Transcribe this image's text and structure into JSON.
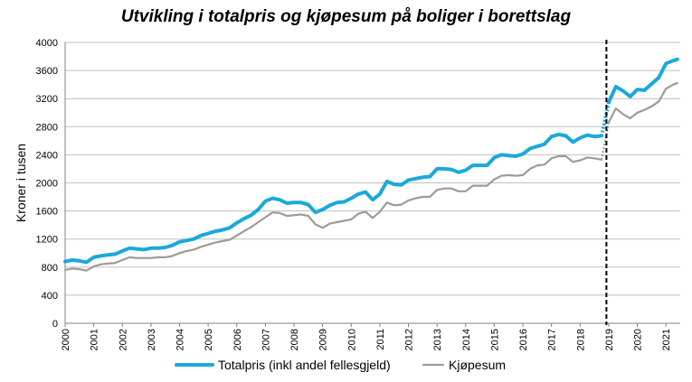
{
  "chart_data": {
    "type": "line",
    "title": "Utvikling i totalpris og kjøpesum på boliger i borettslag",
    "xlabel": "",
    "ylabel": "Kroner i tusen",
    "ylim": [
      0,
      4000
    ],
    "yticks": [
      0,
      400,
      800,
      1200,
      1600,
      2000,
      2400,
      2800,
      3200,
      3600,
      4000
    ],
    "xlim": [
      2000,
      2021.5
    ],
    "xticks": [
      "2000",
      "2001",
      "2002",
      "2003",
      "2004",
      "2005",
      "2006",
      "2007",
      "2008",
      "2009",
      "2010",
      "2011",
      "2012",
      "2013",
      "2014",
      "2015",
      "2016",
      "2017",
      "2018",
      "2019",
      "2020",
      "2021"
    ],
    "grid": "horizontal",
    "legend": "bottom",
    "annotation": "dashed vertical line at start of 2019",
    "divider_x": 2018.92,
    "series": [
      {
        "name": "Totalpris (inkl andel fellesgjeld)",
        "color": "#1BA8DB",
        "segments": [
          {
            "x": [
              2000.0,
              2000.25,
              2000.5,
              2000.75,
              2001.0,
              2001.25,
              2001.5,
              2001.75,
              2002.0,
              2002.25,
              2002.5,
              2002.75,
              2003.0,
              2003.25,
              2003.5,
              2003.75,
              2004.0,
              2004.25,
              2004.5,
              2004.75,
              2005.0,
              2005.25,
              2005.5,
              2005.75,
              2006.0,
              2006.25,
              2006.5,
              2006.75,
              2007.0,
              2007.25,
              2007.5,
              2007.75,
              2008.0,
              2008.25,
              2008.5,
              2008.75,
              2009.0,
              2009.25,
              2009.5,
              2009.75,
              2010.0,
              2010.25,
              2010.5,
              2010.75,
              2011.0,
              2011.25,
              2011.5,
              2011.75,
              2012.0,
              2012.25,
              2012.5,
              2012.75,
              2013.0,
              2013.25,
              2013.5,
              2013.75,
              2014.0,
              2014.25,
              2014.5,
              2014.75,
              2015.0,
              2015.25,
              2015.5,
              2015.75,
              2016.0,
              2016.25,
              2016.5,
              2016.75,
              2017.0,
              2017.25,
              2017.5,
              2017.75,
              2018.0,
              2018.25,
              2018.5,
              2018.75
            ],
            "y": [
              880,
              900,
              890,
              870,
              940,
              960,
              975,
              985,
              1030,
              1070,
              1060,
              1050,
              1070,
              1070,
              1080,
              1110,
              1160,
              1180,
              1200,
              1250,
              1280,
              1310,
              1330,
              1360,
              1430,
              1490,
              1540,
              1620,
              1740,
              1780,
              1760,
              1710,
              1720,
              1720,
              1690,
              1580,
              1620,
              1680,
              1720,
              1730,
              1780,
              1840,
              1870,
              1760,
              1840,
              2020,
              1980,
              1970,
              2040,
              2060,
              2080,
              2090,
              2200,
              2200,
              2190,
              2150,
              2180,
              2250,
              2250,
              2250,
              2360,
              2400,
              2390,
              2380,
              2410,
              2490,
              2520,
              2550,
              2660,
              2690,
              2670,
              2580,
              2640,
              2680,
              2660,
              2670
            ]
          },
          {
            "x": [
              2019.0,
              2019.25,
              2019.5,
              2019.75,
              2020.0,
              2020.25,
              2020.5,
              2020.75,
              2021.0,
              2021.25,
              2021.4
            ],
            "y": [
              3150,
              3370,
              3310,
              3230,
              3330,
              3320,
              3410,
              3500,
              3700,
              3740,
              3760
            ]
          }
        ]
      },
      {
        "name": "Kjøpesum",
        "color": "#A09A92",
        "segments": [
          {
            "x": [
              2000.0,
              2000.25,
              2000.5,
              2000.75,
              2001.0,
              2001.25,
              2001.5,
              2001.75,
              2002.0,
              2002.25,
              2002.5,
              2002.75,
              2003.0,
              2003.25,
              2003.5,
              2003.75,
              2004.0,
              2004.25,
              2004.5,
              2004.75,
              2005.0,
              2005.25,
              2005.5,
              2005.75,
              2006.0,
              2006.25,
              2006.5,
              2006.75,
              2007.0,
              2007.25,
              2007.5,
              2007.75,
              2008.0,
              2008.25,
              2008.5,
              2008.75,
              2009.0,
              2009.25,
              2009.5,
              2009.75,
              2010.0,
              2010.25,
              2010.5,
              2010.75,
              2011.0,
              2011.25,
              2011.5,
              2011.75,
              2012.0,
              2012.25,
              2012.5,
              2012.75,
              2013.0,
              2013.25,
              2013.5,
              2013.75,
              2014.0,
              2014.25,
              2014.5,
              2014.75,
              2015.0,
              2015.25,
              2015.5,
              2015.75,
              2016.0,
              2016.25,
              2016.5,
              2016.75,
              2017.0,
              2017.25,
              2017.5,
              2017.75,
              2018.0,
              2018.25,
              2018.5,
              2018.75
            ],
            "y": [
              760,
              780,
              770,
              750,
              810,
              840,
              850,
              860,
              900,
              940,
              930,
              930,
              930,
              940,
              940,
              960,
              1000,
              1030,
              1050,
              1090,
              1120,
              1150,
              1170,
              1190,
              1250,
              1310,
              1370,
              1440,
              1510,
              1580,
              1570,
              1530,
              1540,
              1550,
              1530,
              1410,
              1360,
              1420,
              1440,
              1460,
              1480,
              1560,
              1590,
              1500,
              1590,
              1720,
              1680,
              1690,
              1750,
              1780,
              1800,
              1800,
              1900,
              1920,
              1920,
              1880,
              1880,
              1960,
              1960,
              1960,
              2050,
              2100,
              2110,
              2100,
              2110,
              2200,
              2250,
              2260,
              2350,
              2380,
              2380,
              2300,
              2320,
              2360,
              2350,
              2330
            ]
          },
          {
            "x": [
              2019.0,
              2019.25,
              2019.5,
              2019.75,
              2020.0,
              2020.25,
              2020.5,
              2020.75,
              2021.0,
              2021.25,
              2021.4
            ],
            "y": [
              2860,
              3060,
              2980,
              2920,
              3000,
              3040,
              3090,
              3160,
              3340,
              3400,
              3420
            ]
          }
        ]
      }
    ]
  }
}
